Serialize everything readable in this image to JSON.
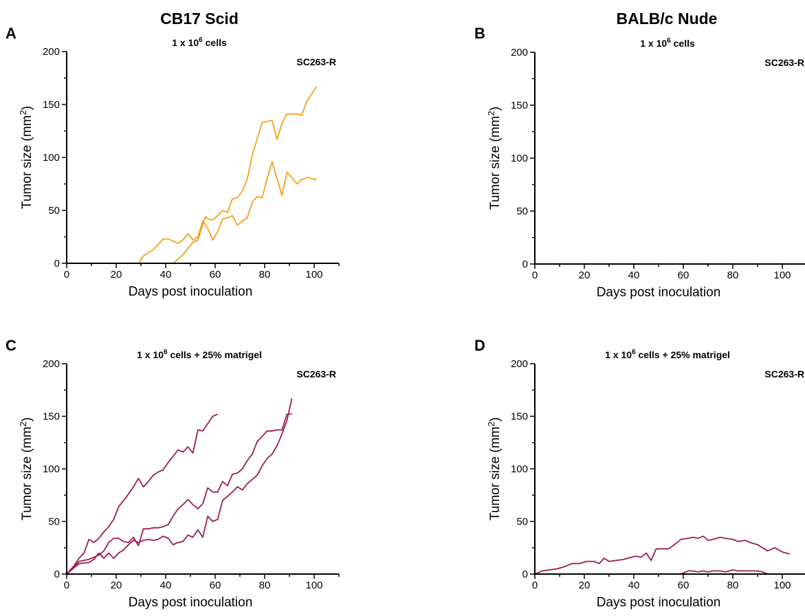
{
  "column_titles": {
    "left": "CB17 Scid",
    "right": "BALB/c Nude"
  },
  "colors": {
    "orange": "#f5a01a",
    "magenta": "#9b1b54"
  },
  "chart_data": [
    {
      "panel": "A",
      "type": "line",
      "title": "1 x 10^6 cells",
      "title_parts": {
        "base": "1 x 10",
        "sup": "6",
        "rest": " cells"
      },
      "tag": "SC263-R",
      "xlabel": "Days post inoculation",
      "ylabel": "Tumor size (mm^2)",
      "xlim": [
        0,
        110
      ],
      "ylim": [
        0,
        200
      ],
      "xticks": [
        0,
        20,
        40,
        60,
        80,
        100
      ],
      "yticks": [
        0,
        50,
        100,
        150,
        200
      ],
      "color": "#f5a01a",
      "series": [
        {
          "x": [
            0,
            10,
            20,
            29,
            31,
            35,
            39,
            41,
            43,
            45,
            47,
            49,
            51,
            53,
            55,
            57,
            59,
            61,
            63,
            65,
            67,
            69,
            71,
            73,
            75,
            77,
            79,
            81,
            83,
            85,
            87,
            89,
            91,
            93,
            95,
            97,
            99,
            101
          ],
          "y": [
            0,
            0,
            0,
            0,
            7,
            13,
            23,
            23,
            21,
            19,
            22,
            28,
            22,
            25,
            40,
            33,
            22,
            30,
            42,
            43,
            45,
            36,
            40,
            43,
            58,
            63,
            62,
            80,
            96,
            80,
            64,
            86,
            81,
            75,
            79,
            81,
            80,
            79
          ]
        },
        {
          "x": [
            0,
            10,
            20,
            29,
            31,
            35,
            39,
            41,
            43,
            47,
            51,
            53,
            56,
            57,
            59,
            61,
            63,
            65,
            67,
            69,
            71,
            73,
            75,
            77,
            79,
            81,
            83,
            85,
            87,
            89,
            91,
            93,
            95,
            97,
            99,
            101
          ],
          "y": [
            0,
            0,
            0,
            0,
            0,
            0,
            0,
            0,
            0,
            8,
            20,
            22,
            44,
            42,
            41,
            45,
            50,
            48,
            61,
            62,
            68,
            80,
            102,
            118,
            133,
            134,
            135,
            117,
            132,
            141,
            141,
            141,
            140,
            153,
            160,
            167
          ]
        },
        {
          "x": [
            0,
            20,
            40,
            60,
            80,
            100
          ],
          "y": [
            0,
            0,
            0,
            0,
            0,
            0
          ]
        }
      ]
    },
    {
      "panel": "B",
      "type": "line",
      "title": "1 x 10^6 cells",
      "title_parts": {
        "base": "1 x 10",
        "sup": "6",
        "rest": " cells"
      },
      "tag": "SC263-R",
      "xlabel": "Days post inoculation",
      "ylabel": "Tumor size (mm^2)",
      "xlim": [
        0,
        110
      ],
      "ylim": [
        0,
        200
      ],
      "xticks": [
        0,
        20,
        40,
        60,
        80,
        100
      ],
      "yticks": [
        0,
        50,
        100,
        150,
        200
      ],
      "color": "#f5a01a",
      "series": [
        {
          "x": [
            0,
            20,
            40,
            60,
            80,
            100
          ],
          "y": [
            0,
            0,
            0,
            0,
            0,
            0
          ]
        },
        {
          "x": [
            0,
            20,
            40,
            60,
            80,
            100
          ],
          "y": [
            0,
            0,
            0,
            0,
            0,
            0
          ]
        },
        {
          "x": [
            0,
            20,
            40,
            60,
            80,
            100
          ],
          "y": [
            0,
            0,
            0,
            0,
            0,
            0
          ]
        }
      ]
    },
    {
      "panel": "C",
      "type": "line",
      "title": "1 x 10^6 cells + 25% matrigel",
      "title_parts": {
        "base": "1 x 10",
        "sup": "6",
        "rest": " cells + 25% matrigel"
      },
      "tag": "SC263-R",
      "xlabel": "Days post inoculation",
      "ylabel": "Tumor size (mm^2)",
      "xlim": [
        0,
        110
      ],
      "ylim": [
        0,
        200
      ],
      "xticks": [
        0,
        20,
        40,
        60,
        80,
        100
      ],
      "yticks": [
        0,
        50,
        100,
        150,
        200
      ],
      "color": "#9b1b54",
      "series": [
        {
          "x": [
            0,
            3,
            5,
            7,
            9,
            11,
            13,
            15,
            17,
            19,
            21,
            24,
            27,
            29,
            31,
            33,
            35,
            37,
            39,
            41,
            43,
            45,
            47,
            49,
            51,
            53,
            55,
            57,
            59,
            61
          ],
          "y": [
            0,
            8,
            15,
            20,
            33,
            30,
            34,
            40,
            45,
            52,
            64,
            73,
            83,
            91,
            83,
            88,
            94,
            97,
            99,
            106,
            112,
            118,
            116,
            121,
            115,
            137,
            136,
            143,
            150,
            152
          ]
        },
        {
          "x": [
            0,
            5,
            9,
            11,
            13,
            15,
            17,
            19,
            21,
            23,
            25,
            27,
            29,
            31,
            33,
            35,
            37,
            39,
            41,
            43,
            45,
            47,
            49,
            51,
            53,
            55,
            57,
            59,
            61,
            63,
            65,
            67,
            69,
            71,
            73,
            75,
            77,
            79,
            81,
            83,
            85,
            87,
            89,
            91
          ],
          "y": [
            0,
            12,
            14,
            16,
            18,
            22,
            30,
            34,
            34,
            31,
            30,
            35,
            27,
            43,
            43,
            44,
            44,
            45,
            47,
            55,
            62,
            66,
            71,
            66,
            62,
            67,
            82,
            78,
            78,
            88,
            84,
            95,
            96,
            100,
            108,
            114,
            126,
            131,
            136,
            136,
            137,
            137,
            152,
            152
          ]
        },
        {
          "x": [
            0,
            5,
            9,
            11,
            13,
            15,
            17,
            19,
            21,
            23,
            25,
            27,
            29,
            31,
            33,
            35,
            37,
            39,
            41,
            43,
            45,
            47,
            49,
            51,
            53,
            55,
            57,
            59,
            61,
            63,
            65,
            67,
            69,
            71,
            73,
            75,
            77,
            79,
            81,
            83,
            85,
            87,
            89,
            91
          ],
          "y": [
            0,
            10,
            11,
            14,
            20,
            15,
            20,
            15,
            20,
            23,
            28,
            32,
            30,
            32,
            33,
            32,
            33,
            36,
            34,
            28,
            30,
            31,
            37,
            35,
            42,
            35,
            55,
            50,
            52,
            70,
            74,
            78,
            83,
            80,
            86,
            90,
            94,
            103,
            110,
            114,
            122,
            133,
            146,
            167
          ]
        }
      ]
    },
    {
      "panel": "D",
      "type": "line",
      "title": "1 x 10^6 cells + 25% matrigel",
      "title_parts": {
        "base": "1 x 10",
        "sup": "6",
        "rest": " cells + 25% matrigel"
      },
      "tag": "SC263-R",
      "xlabel": "Days post inoculation",
      "ylabel": "Tumor size (mm^2)",
      "xlim": [
        0,
        110
      ],
      "ylim": [
        0,
        200
      ],
      "xticks": [
        0,
        20,
        40,
        60,
        80,
        100
      ],
      "yticks": [
        0,
        50,
        100,
        150,
        200
      ],
      "color": "#9b1b54",
      "series": [
        {
          "x": [
            0,
            3,
            6,
            9,
            12,
            15,
            18,
            21,
            24,
            26,
            28,
            30,
            33,
            36,
            39,
            41,
            43,
            45,
            47,
            49,
            52,
            54,
            57,
            59,
            62,
            64,
            66,
            68,
            70,
            72,
            75,
            77,
            80,
            82,
            85,
            87,
            90,
            92,
            94,
            97,
            100,
            103
          ],
          "y": [
            0,
            3,
            4,
            5,
            7,
            10,
            10,
            12,
            12,
            10,
            15,
            12,
            13,
            14,
            16,
            17,
            16,
            20,
            13,
            24,
            24,
            24,
            29,
            33,
            34,
            35,
            34,
            36,
            32,
            33,
            35,
            34,
            33,
            31,
            32,
            30,
            28,
            25,
            22,
            25,
            21,
            19
          ]
        },
        {
          "x": [
            0,
            20,
            40,
            57,
            59,
            62,
            64,
            66,
            68,
            70,
            72,
            75,
            77,
            80,
            82,
            85,
            87,
            90,
            92,
            94,
            97,
            100
          ],
          "y": [
            0,
            0,
            0,
            0,
            0,
            3,
            3,
            2,
            3,
            2,
            3,
            3,
            2,
            4,
            3,
            3,
            3,
            3,
            2,
            0,
            0,
            0
          ]
        },
        {
          "x": [
            0,
            20,
            40,
            60,
            80,
            100
          ],
          "y": [
            0,
            0,
            0,
            0,
            0,
            0
          ]
        }
      ]
    }
  ]
}
